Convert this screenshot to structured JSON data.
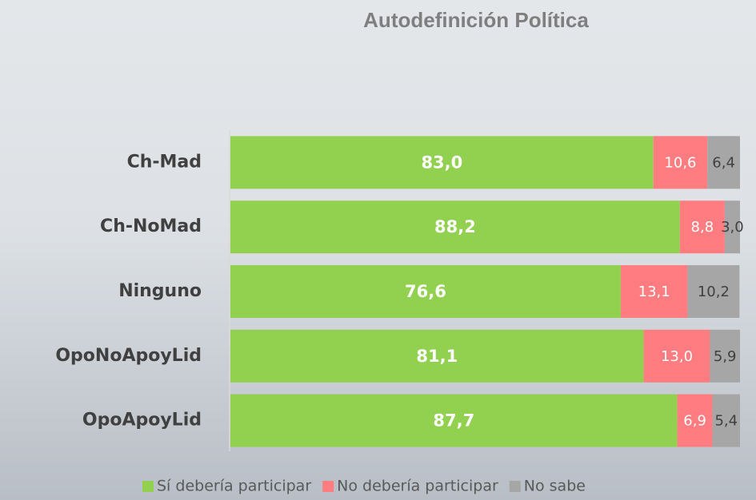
{
  "chart_data": {
    "type": "stacked_bar_horizontal",
    "title": "Autodefinición Política",
    "categories": [
      "Ch-Mad",
      "Ch-NoMad",
      "Ninguno",
      "OpoNoApoyLid",
      "OpoApoyLid"
    ],
    "xlim": [
      0,
      100
    ],
    "legend": "bottom",
    "series": [
      {
        "name": "Sí debería participar",
        "color": "#92d050",
        "values": [
          83.0,
          88.2,
          76.6,
          81.1,
          87.7
        ],
        "value_labels": [
          "83,0",
          "88,2",
          "76,6",
          "81,1",
          "87,7"
        ]
      },
      {
        "name": "No debería participar",
        "color": "#ff7c80",
        "values": [
          10.6,
          8.8,
          13.1,
          13.0,
          6.9
        ],
        "value_labels": [
          "10,6",
          "8,8",
          "13,1",
          "13,0",
          "6,9"
        ]
      },
      {
        "name": "No sabe",
        "color": "#a6a6a6",
        "values": [
          6.4,
          3.0,
          10.2,
          5.9,
          5.4
        ],
        "value_labels": [
          "6,4",
          "3,0",
          "10,2",
          "5,9",
          "5,4"
        ]
      }
    ]
  }
}
